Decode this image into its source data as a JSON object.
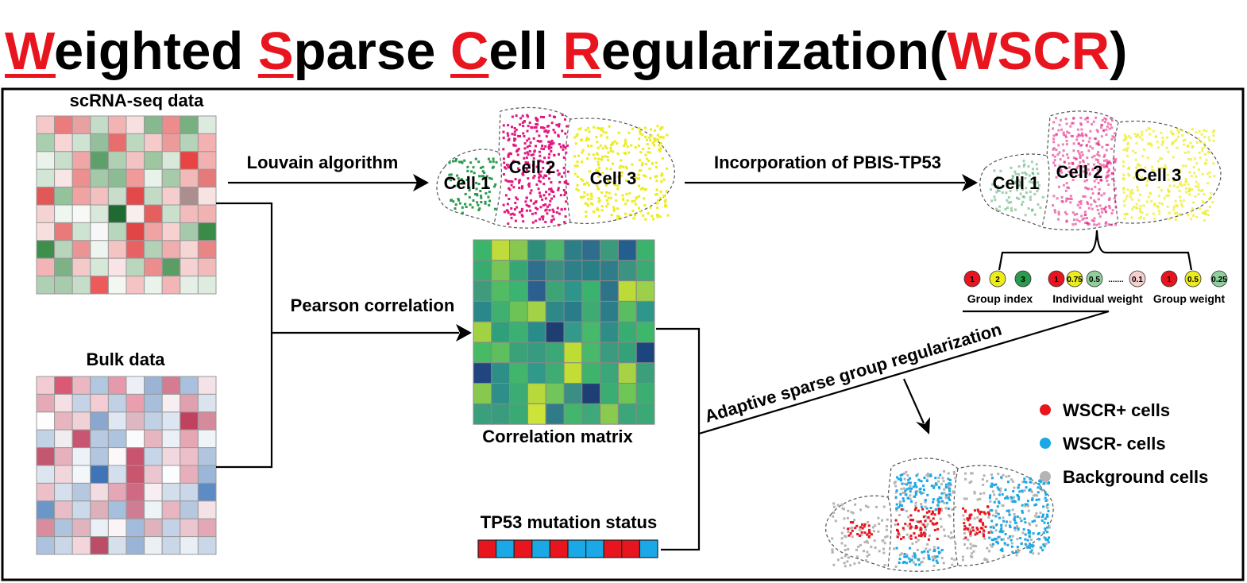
{
  "title": {
    "w": "W",
    "w_rest": "eighted ",
    "s": "S",
    "s_rest": "parse ",
    "c": "C",
    "c_rest": "ell ",
    "r": "R",
    "r_rest": "egularization(",
    "abbr": "WSCR",
    "close": ")"
  },
  "inputs": {
    "scrna_label": "scRNA-seq data",
    "bulk_label": "Bulk data",
    "tp53_label": "TP53 mutation status"
  },
  "steps": {
    "louvain": "Louvain algorithm",
    "incorporation": "Incorporation of PBIS-TP53",
    "pearson": "Pearson correlation",
    "correlation_matrix": "Correlation matrix",
    "adaptive": "Adaptive sparse group regularization"
  },
  "clusters": {
    "cell1": "Cell 1",
    "cell2": "Cell 2",
    "cell3": "Cell 3"
  },
  "weights": {
    "group_index": [
      "1",
      "2",
      "3"
    ],
    "individual": [
      "1",
      "0.75",
      "0.5",
      "0.1"
    ],
    "ellipsis": ".......",
    "group_weight": [
      "1",
      "0.5",
      "0.25"
    ],
    "group_index_label": "Group index",
    "individual_label": "Individual weight",
    "group_weight_label": "Group weight"
  },
  "legend": {
    "pos": "WSCR+ cells",
    "neg": "WSCR- cells",
    "bg": "Background cells"
  },
  "colors": {
    "red": "#e8141e",
    "blue": "#1aa8e6",
    "gray": "#b4b4b4",
    "green": "#2a9a4c",
    "magenta": "#e0187e",
    "yellow": "#ecec1c"
  },
  "tp53_status": [
    "red",
    "blue",
    "red",
    "blue",
    "red",
    "blue",
    "blue",
    "red",
    "red",
    "blue"
  ],
  "heatmaps": {
    "scrna": [
      [
        "#f5c9c9",
        "#ec7b7b",
        "#e8a1a1",
        "#c5dcc8",
        "#f3b3b3",
        "#f8e0e0",
        "#88b890",
        "#ec8c8c",
        "#78b080",
        "#dcebdd"
      ],
      [
        "#a9cfae",
        "#f8d6d6",
        "#cfe3d2",
        "#93c09a",
        "#e86d6d",
        "#bcd9c0",
        "#f5caca",
        "#ec9a9a",
        "#b5d3b9",
        "#f3b1b1"
      ],
      [
        "#eaf3eb",
        "#c8dfcb",
        "#f0a6a6",
        "#5ea06a",
        "#b0d0b4",
        "#f3c3c3",
        "#9ec79f",
        "#d8e9da",
        "#e84444",
        "#f2b0b0"
      ],
      [
        "#d3e6d6",
        "#f8e5e5",
        "#ec8f8f",
        "#a4c9a8",
        "#8cbc93",
        "#f09a9a",
        "#e9f2ea",
        "#a7cbaa",
        "#f2b9b9",
        "#e57a7a"
      ],
      [
        "#e25858",
        "#94c29b",
        "#f0a3a3",
        "#f3c0c0",
        "#c8deca",
        "#e24a4a",
        "#c2dbc5",
        "#f5cdcd",
        "#ac8e8e",
        "#f8e3e3"
      ],
      [
        "#f6d3d3",
        "#eef6ef",
        "#f7f9f7",
        "#d8e8da",
        "#1d6b30",
        "#f9eeee",
        "#e65f5f",
        "#c9e0cc",
        "#f2bcbc",
        "#f2b2b2"
      ],
      [
        "#f8dfdf",
        "#e87a7a",
        "#cfe3d2",
        "#f7f7f7",
        "#b8d6bc",
        "#e24545",
        "#f0a3a3",
        "#f7d0d0",
        "#a6c9ab",
        "#3a8a4a"
      ],
      [
        "#3e8e4c",
        "#b7d5bb",
        "#ea9494",
        "#eef5ef",
        "#f4c4c4",
        "#e76262",
        "#b2d1b6",
        "#f1aeae",
        "#f6d5d5",
        "#e98585"
      ],
      [
        "#f2b4b4",
        "#7cb285",
        "#f4c9c9",
        "#d6e8d8",
        "#f8e4e4",
        "#bad7be",
        "#eb8d8d",
        "#5b9d65",
        "#f5d1d1",
        "#f2baba"
      ],
      [
        "#b0d0b4",
        "#a8cbad",
        "#c6ddc9",
        "#ec5a5a",
        "#f2f7f2",
        "#f4c3c3",
        "#eaf3eb",
        "#f2b6b6",
        "#e5efe6",
        "#ddecdf"
      ]
    ],
    "bulk": [
      [
        "#f3cbd2",
        "#d95a72",
        "#eab7c2",
        "#b2c7e0",
        "#e59aab",
        "#ecf0f6",
        "#9bb4d6",
        "#d47d92",
        "#a9c0de",
        "#f3e2e6"
      ],
      [
        "#e5a9b7",
        "#f5dfe4",
        "#c4d3e6",
        "#f3ccd4",
        "#c0d0e5",
        "#ea9fae",
        "#a8bfdc",
        "#f7eef1",
        "#dfa0b0",
        "#dbe3ef"
      ],
      [
        "#fdfdfd",
        "#e7b5c0",
        "#f1d1d8",
        "#8aa8cf",
        "#dfe8f2",
        "#ddb7c2",
        "#c1d1e5",
        "#dce5f0",
        "#c1425f",
        "#d68b9d"
      ],
      [
        "#c2d3e6",
        "#f0ecef",
        "#c85572",
        "#b7cae1",
        "#aec4de",
        "#fafbfc",
        "#e7b5c0",
        "#ebf0f6",
        "#e5a7b4",
        "#eff4f9"
      ],
      [
        "#c3576f",
        "#e6b0bc",
        "#edf2f8",
        "#b2c6df",
        "#fcf7f8",
        "#c95470",
        "#c6d5e7",
        "#f0d8de",
        "#ecbfc9",
        "#b1c5de"
      ],
      [
        "#dde5ef",
        "#f1d6dc",
        "#f4f7fa",
        "#3f74b6",
        "#d4dfed",
        "#c8566f",
        "#ecc6cf",
        "#fbfcfd",
        "#e7aebb",
        "#9cb6d7"
      ],
      [
        "#ecbfc9",
        "#d6e0ed",
        "#b5c8e0",
        "#f2dce1",
        "#e5a6b5",
        "#d06a83",
        "#f6eef0",
        "#d2deec",
        "#c9d7e8",
        "#5d8bc3"
      ],
      [
        "#6c95c8",
        "#e9bdc7",
        "#ccd9ea",
        "#ddb0bb",
        "#a6bfdd",
        "#cf7d92",
        "#eef3f8",
        "#e7b6c1",
        "#b5c8e0",
        "#f4e2e6"
      ],
      [
        "#d98c9e",
        "#aec3de",
        "#e1b3be",
        "#eaf0f6",
        "#fbf4f6",
        "#a3bcdc",
        "#dfb2bd",
        "#c3d2e6",
        "#ecc6cf",
        "#e4a7b5"
      ],
      [
        "#adc2de",
        "#c9d7e8",
        "#f2d6dc",
        "#bb4d67",
        "#d6e0ed",
        "#99b4d6",
        "#eaf0f6",
        "#c9d7e8",
        "#eaeff6",
        "#c9d7e8"
      ]
    ],
    "correlation": [
      [
        "#3bb56a",
        "#c0dc3a",
        "#88c84f",
        "#2d8e7a",
        "#4eb86a",
        "#2c7f86",
        "#2e6d8d",
        "#3b9a7c",
        "#245e8f",
        "#3cb36c"
      ],
      [
        "#38ac70",
        "#76c556",
        "#35a775",
        "#2d6f8d",
        "#3c8f80",
        "#2d808a",
        "#288086",
        "#2f7d88",
        "#3c9381",
        "#3aab72"
      ],
      [
        "#3e9c7d",
        "#52bc65",
        "#3ab470",
        "#2a5f8f",
        "#3da575",
        "#2e958a",
        "#3ab36e",
        "#2d7488",
        "#bcdb37",
        "#9ccf4a"
      ],
      [
        "#2a888a",
        "#3fb070",
        "#6ec356",
        "#a4d246",
        "#2f8888",
        "#2a7c8a",
        "#3dab72",
        "#2b7e89",
        "#5bbd62",
        "#2e968a"
      ],
      [
        "#a2d244",
        "#30a07b",
        "#3caf73",
        "#2a8c8a",
        "#1e3d70",
        "#33998a",
        "#47b96a",
        "#2f8d87",
        "#38ad72",
        "#3db86a"
      ],
      [
        "#47ba66",
        "#5fbf5f",
        "#39a279",
        "#379b80",
        "#3aa877",
        "#bedd34",
        "#48b96a",
        "#3a9b7e",
        "#33a278",
        "#1c457f"
      ],
      [
        "#214580",
        "#2d8f88",
        "#40b56b",
        "#30998a",
        "#3fac74",
        "#c2dd33",
        "#3eb36c",
        "#3aa679",
        "#a6d243",
        "#3c9f7c"
      ],
      [
        "#87c94f",
        "#2e8e8a",
        "#3bac73",
        "#b7d93c",
        "#72c55a",
        "#3b8e83",
        "#1e3f74",
        "#3aad72",
        "#6ec656",
        "#3dae71"
      ],
      [
        "#3c9f7c",
        "#3b9b7f",
        "#3aaa75",
        "#cde33a",
        "#2f7c88",
        "#44b56c",
        "#3ea878",
        "#89cb4f",
        "#3ca679",
        "#3aa976"
      ]
    ]
  }
}
